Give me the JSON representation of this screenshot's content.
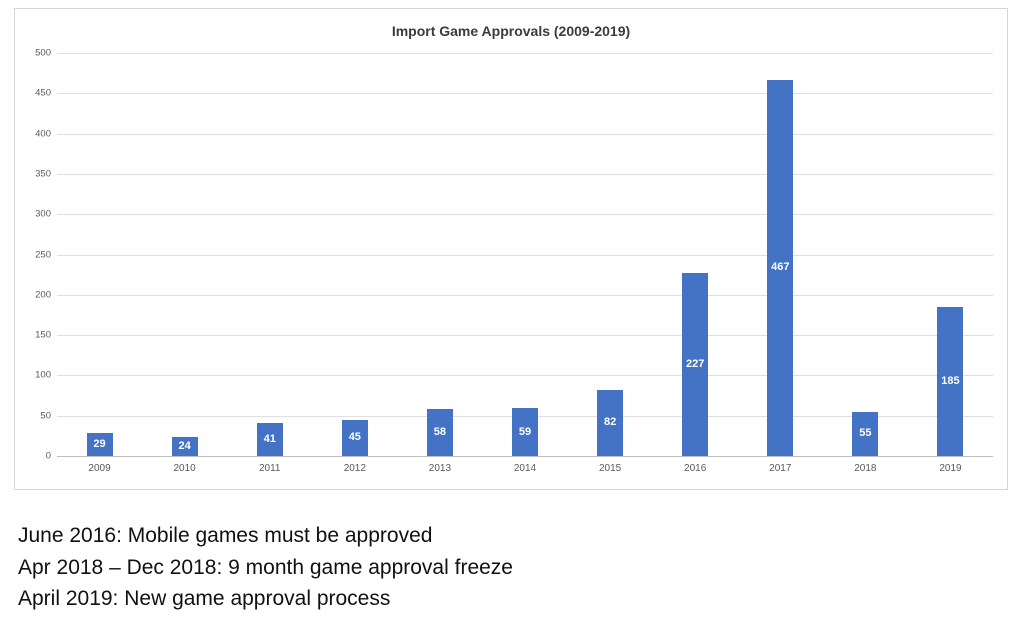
{
  "chart_data": {
    "type": "bar",
    "title": "Import Game Approvals (2009-2019)",
    "categories": [
      "2009",
      "2010",
      "2011",
      "2012",
      "2013",
      "2014",
      "2015",
      "2016",
      "2017",
      "2018",
      "2019"
    ],
    "values": [
      29,
      24,
      41,
      45,
      58,
      59,
      82,
      227,
      467,
      55,
      185
    ],
    "xlabel": "",
    "ylabel": "",
    "ylim": [
      0,
      500
    ],
    "ytick_step": 50,
    "grid": true,
    "legend": "none",
    "bar_color": "#4472C4",
    "value_label_color": "#FFFFFF",
    "value_label_position": "inside-center"
  },
  "annotations": [
    "June 2016: Mobile games must be approved",
    "Apr 2018 – Dec 2018: 9 month game approval freeze",
    "April 2019: New game approval process"
  ]
}
